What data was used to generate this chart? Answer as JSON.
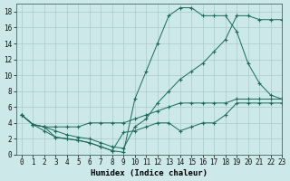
{
  "xlabel": "Humidex (Indice chaleur)",
  "bg_color": "#cce8e8",
  "grid_color": "#aacccc",
  "line_color": "#1a6b5a",
  "xlim": [
    -0.5,
    23
  ],
  "ylim": [
    0,
    19
  ],
  "xticks": [
    0,
    1,
    2,
    3,
    4,
    5,
    6,
    7,
    8,
    9,
    10,
    11,
    12,
    13,
    14,
    15,
    16,
    17,
    18,
    19,
    20,
    21,
    22,
    23
  ],
  "yticks": [
    0,
    2,
    4,
    6,
    8,
    10,
    12,
    14,
    16,
    18
  ],
  "series": [
    {
      "x": [
        0,
        1,
        2,
        3,
        4,
        5,
        6,
        7,
        8,
        9,
        10,
        11,
        12,
        13,
        14,
        15,
        16,
        17,
        18,
        19,
        20,
        21,
        22,
        23
      ],
      "y": [
        5.0,
        3.8,
        3.0,
        2.2,
        2.0,
        1.8,
        1.5,
        1.0,
        0.5,
        0.3,
        7.0,
        10.5,
        14.0,
        17.5,
        18.5,
        18.5,
        17.5,
        17.5,
        17.5,
        15.5,
        11.5,
        9.0,
        7.5,
        7.0
      ]
    },
    {
      "x": [
        0,
        1,
        2,
        3,
        4,
        5,
        6,
        7,
        8,
        9,
        10,
        11,
        12,
        13,
        14,
        15,
        16,
        17,
        18,
        19,
        20,
        21,
        22,
        23
      ],
      "y": [
        5.0,
        3.8,
        3.5,
        3.0,
        2.5,
        2.2,
        2.0,
        1.5,
        1.0,
        0.8,
        3.5,
        4.5,
        6.5,
        8.0,
        9.5,
        10.5,
        11.5,
        13.0,
        14.5,
        17.5,
        17.5,
        17.0,
        17.0,
        17.0
      ]
    },
    {
      "x": [
        0,
        1,
        2,
        3,
        4,
        5,
        6,
        7,
        8,
        9,
        10,
        11,
        12,
        13,
        14,
        15,
        16,
        17,
        18,
        19,
        20,
        21,
        22,
        23
      ],
      "y": [
        5.0,
        3.8,
        3.5,
        3.5,
        3.5,
        3.5,
        4.0,
        4.0,
        4.0,
        4.0,
        4.5,
        5.0,
        5.5,
        6.0,
        6.5,
        6.5,
        6.5,
        6.5,
        6.5,
        7.0,
        7.0,
        7.0,
        7.0,
        7.0
      ]
    },
    {
      "x": [
        0,
        1,
        2,
        3,
        4,
        5,
        6,
        7,
        8,
        9,
        10,
        11,
        12,
        13,
        14,
        15,
        16,
        17,
        18,
        19,
        20,
        21,
        22,
        23
      ],
      "y": [
        5.0,
        3.8,
        3.5,
        2.2,
        2.0,
        1.8,
        1.5,
        1.0,
        0.5,
        2.8,
        3.0,
        3.5,
        4.0,
        4.0,
        3.0,
        3.5,
        4.0,
        4.0,
        5.0,
        6.5,
        6.5,
        6.5,
        6.5,
        6.5
      ]
    }
  ]
}
